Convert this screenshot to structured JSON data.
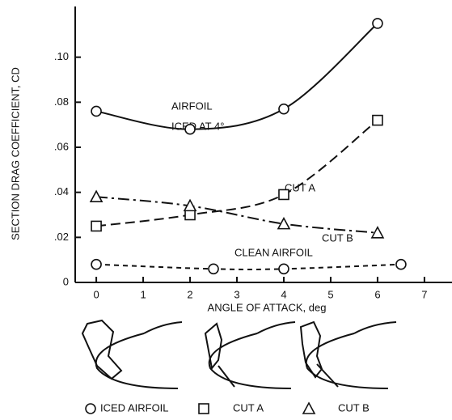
{
  "chart_data": {
    "type": "line",
    "y_label": "SECTION DRAG COEFFICIENT, CD",
    "x_label": "ANGLE OF ATTACK, deg",
    "annotations": [
      "AIRFOIL",
      "ICED AT 4°",
      "CUT A",
      "CUT B"
    ],
    "xlim": [
      -0.45,
      7.45
    ],
    "xticks": [
      0,
      1,
      2,
      3,
      4,
      5,
      6,
      7
    ],
    "ylim": [
      0,
      0.12
    ],
    "yticks": [
      0,
      {
        "value": 0.02,
        "label": ".02"
      },
      {
        "value": 0.04,
        "label": ".04"
      },
      {
        "value": 0.06,
        "label": ".06"
      },
      {
        "value": 0.08,
        "label": ".08"
      },
      {
        "value": 0.1,
        "label": ".10"
      }
    ],
    "series": [
      {
        "name": "ICED AIRFOIL",
        "color": "#111111",
        "marker": "circle",
        "dash": "solid",
        "x": [
          0,
          2,
          4,
          6
        ],
        "values": [
          0.076,
          0.068,
          0.077,
          0.115
        ]
      },
      {
        "name": "CUT A",
        "color": "#111111",
        "marker": "square",
        "dash": "dashed",
        "x": [
          0,
          2,
          4,
          6
        ],
        "values": [
          0.025,
          0.03,
          0.039,
          0.072
        ]
      },
      {
        "name": "CUT B",
        "color": "#111111",
        "marker": "triangle",
        "dash": "dashdot",
        "x": [
          0,
          2,
          4,
          6
        ],
        "values": [
          0.038,
          0.034,
          0.026,
          0.022
        ]
      },
      {
        "name": "CLEAN AIRFOIL",
        "color": "#111111",
        "marker": "circle",
        "dash": "dotted",
        "x": [
          0,
          2.5,
          4,
          6.5
        ],
        "values": [
          0.008,
          0.006,
          0.006,
          0.008
        ]
      }
    ]
  }
}
